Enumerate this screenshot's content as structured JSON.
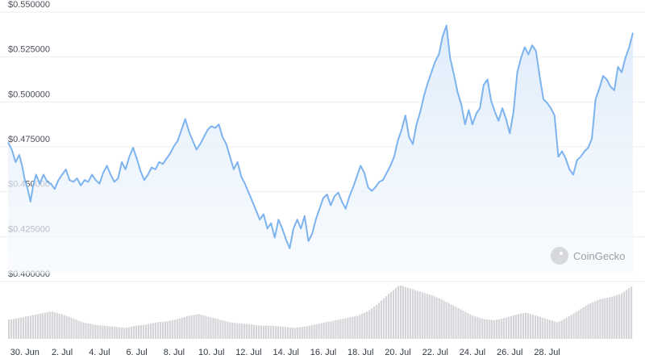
{
  "chart_data": {
    "type": "area",
    "title": "",
    "xlabel": "",
    "ylabel": "",
    "y_tick_labels": [
      "$0.550000",
      "$0.525000",
      "$0.500000",
      "$0.475000",
      "$0.450000",
      "$0.425000",
      "$0.400000"
    ],
    "y_ticks": [
      0.55,
      0.525,
      0.5,
      0.475,
      0.45,
      0.425,
      0.4
    ],
    "ylim": [
      0.4,
      0.55
    ],
    "x_tick_labels": [
      "30. Jun",
      "2. Jul",
      "4. Jul",
      "6. Jul",
      "8. Jul",
      "10. Jul",
      "12. Jul",
      "14. Jul",
      "16. Jul",
      "18. Jul",
      "20. Jul",
      "22. Jul",
      "24. Jul",
      "26. Jul",
      "28. Jul"
    ],
    "x_ticks_day": [
      0,
      2,
      4,
      6,
      8,
      10,
      12,
      14,
      16,
      18,
      20,
      22,
      24,
      26,
      28
    ],
    "xlim_day": [
      -0.9,
      29.2
    ],
    "grid": true,
    "colors": {
      "line": "#7db3ee",
      "area_top": "#dcebfa",
      "volume": "#d3d5d8"
    },
    "series": [
      {
        "values": [
          [
            -0.9,
            0.473
          ],
          [
            -0.7,
            0.469
          ],
          [
            -0.5,
            0.462
          ],
          [
            -0.3,
            0.466
          ],
          [
            -0.15,
            0.46
          ],
          [
            0.0,
            0.452
          ],
          [
            0.15,
            0.447
          ],
          [
            0.3,
            0.44
          ],
          [
            0.45,
            0.449
          ],
          [
            0.6,
            0.455
          ],
          [
            0.8,
            0.45
          ],
          [
            1.0,
            0.455
          ],
          [
            1.2,
            0.451
          ],
          [
            1.4,
            0.45
          ],
          [
            1.6,
            0.447
          ],
          [
            1.8,
            0.452
          ],
          [
            2.0,
            0.455
          ],
          [
            2.2,
            0.458
          ],
          [
            2.4,
            0.452
          ],
          [
            2.6,
            0.451
          ],
          [
            2.8,
            0.453
          ],
          [
            3.0,
            0.449
          ],
          [
            3.2,
            0.452
          ],
          [
            3.4,
            0.451
          ],
          [
            3.6,
            0.455
          ],
          [
            3.8,
            0.452
          ],
          [
            4.0,
            0.45
          ],
          [
            4.2,
            0.456
          ],
          [
            4.4,
            0.46
          ],
          [
            4.6,
            0.455
          ],
          [
            4.8,
            0.451
          ],
          [
            5.0,
            0.453
          ],
          [
            5.2,
            0.462
          ],
          [
            5.4,
            0.458
          ],
          [
            5.6,
            0.465
          ],
          [
            5.8,
            0.47
          ],
          [
            6.0,
            0.464
          ],
          [
            6.2,
            0.457
          ],
          [
            6.4,
            0.452
          ],
          [
            6.6,
            0.455
          ],
          [
            6.8,
            0.459
          ],
          [
            7.0,
            0.458
          ],
          [
            7.2,
            0.462
          ],
          [
            7.4,
            0.461
          ],
          [
            7.6,
            0.464
          ],
          [
            7.8,
            0.467
          ],
          [
            8.0,
            0.471
          ],
          [
            8.2,
            0.474
          ],
          [
            8.4,
            0.48
          ],
          [
            8.6,
            0.486
          ],
          [
            8.8,
            0.479
          ],
          [
            9.0,
            0.474
          ],
          [
            9.2,
            0.469
          ],
          [
            9.4,
            0.472
          ],
          [
            9.6,
            0.476
          ],
          [
            9.8,
            0.48
          ],
          [
            10.0,
            0.482
          ],
          [
            10.2,
            0.481
          ],
          [
            10.4,
            0.483
          ],
          [
            10.6,
            0.476
          ],
          [
            10.8,
            0.472
          ],
          [
            11.0,
            0.465
          ],
          [
            11.2,
            0.458
          ],
          [
            11.4,
            0.462
          ],
          [
            11.6,
            0.454
          ],
          [
            11.8,
            0.45
          ],
          [
            12.0,
            0.445
          ],
          [
            12.2,
            0.44
          ],
          [
            12.4,
            0.435
          ],
          [
            12.6,
            0.43
          ],
          [
            12.8,
            0.433
          ],
          [
            13.0,
            0.425
          ],
          [
            13.2,
            0.428
          ],
          [
            13.4,
            0.42
          ],
          [
            13.6,
            0.43
          ],
          [
            13.8,
            0.425
          ],
          [
            14.0,
            0.419
          ],
          [
            14.2,
            0.414
          ],
          [
            14.4,
            0.425
          ],
          [
            14.6,
            0.43
          ],
          [
            14.8,
            0.425
          ],
          [
            15.0,
            0.432
          ],
          [
            15.2,
            0.418
          ],
          [
            15.4,
            0.422
          ],
          [
            15.6,
            0.43
          ],
          [
            15.8,
            0.436
          ],
          [
            16.0,
            0.442
          ],
          [
            16.2,
            0.444
          ],
          [
            16.4,
            0.438
          ],
          [
            16.6,
            0.443
          ],
          [
            16.8,
            0.445
          ],
          [
            17.0,
            0.44
          ],
          [
            17.2,
            0.436
          ],
          [
            17.4,
            0.443
          ],
          [
            17.6,
            0.448
          ],
          [
            17.8,
            0.454
          ],
          [
            18.0,
            0.46
          ],
          [
            18.2,
            0.456
          ],
          [
            18.4,
            0.448
          ],
          [
            18.6,
            0.446
          ],
          [
            18.8,
            0.448
          ],
          [
            19.0,
            0.451
          ],
          [
            19.2,
            0.452
          ],
          [
            19.4,
            0.456
          ],
          [
            19.6,
            0.46
          ],
          [
            19.8,
            0.465
          ],
          [
            20.0,
            0.474
          ],
          [
            20.2,
            0.48
          ],
          [
            20.4,
            0.488
          ],
          [
            20.6,
            0.476
          ],
          [
            20.8,
            0.472
          ],
          [
            21.0,
            0.483
          ],
          [
            21.2,
            0.49
          ],
          [
            21.4,
            0.499
          ],
          [
            21.6,
            0.506
          ],
          [
            21.8,
            0.512
          ],
          [
            22.0,
            0.518
          ],
          [
            22.2,
            0.522
          ],
          [
            22.4,
            0.532
          ],
          [
            22.6,
            0.538
          ],
          [
            22.8,
            0.52
          ],
          [
            23.0,
            0.511
          ],
          [
            23.2,
            0.501
          ],
          [
            23.4,
            0.494
          ],
          [
            23.6,
            0.483
          ],
          [
            23.8,
            0.491
          ],
          [
            24.0,
            0.483
          ],
          [
            24.2,
            0.489
          ],
          [
            24.4,
            0.492
          ],
          [
            24.6,
            0.505
          ],
          [
            24.8,
            0.508
          ],
          [
            25.0,
            0.496
          ],
          [
            25.2,
            0.49
          ],
          [
            25.4,
            0.485
          ],
          [
            25.6,
            0.492
          ],
          [
            25.8,
            0.486
          ],
          [
            26.0,
            0.478
          ],
          [
            26.2,
            0.49
          ],
          [
            26.4,
            0.512
          ],
          [
            26.6,
            0.52
          ],
          [
            26.8,
            0.526
          ],
          [
            27.0,
            0.522
          ],
          [
            27.2,
            0.527
          ],
          [
            27.4,
            0.524
          ],
          [
            27.6,
            0.51
          ],
          [
            27.8,
            0.497
          ],
          [
            28.0,
            0.495
          ],
          [
            28.2,
            0.492
          ],
          [
            28.4,
            0.488
          ],
          [
            28.6,
            0.465
          ],
          [
            28.8,
            0.468
          ],
          [
            29.0,
            0.464
          ],
          [
            29.2,
            0.458
          ],
          [
            29.4,
            0.455
          ],
          [
            29.6,
            0.463
          ],
          [
            29.8,
            0.465
          ],
          [
            30.0,
            0.468
          ],
          [
            30.2,
            0.47
          ],
          [
            30.4,
            0.475
          ],
          [
            30.6,
            0.497
          ],
          [
            30.8,
            0.503
          ],
          [
            31.0,
            0.51
          ],
          [
            31.2,
            0.508
          ],
          [
            31.4,
            0.504
          ],
          [
            31.6,
            0.502
          ],
          [
            31.8,
            0.515
          ],
          [
            32.0,
            0.512
          ],
          [
            32.2,
            0.52
          ],
          [
            32.4,
            0.526
          ],
          [
            32.6,
            0.534
          ]
        ]
      }
    ],
    "volume_relative": [
      0.35,
      0.38,
      0.42,
      0.46,
      0.5,
      0.45,
      0.38,
      0.3,
      0.26,
      0.24,
      0.22,
      0.2,
      0.24,
      0.26,
      0.3,
      0.32,
      0.36,
      0.42,
      0.45,
      0.4,
      0.35,
      0.3,
      0.28,
      0.26,
      0.24,
      0.24,
      0.22,
      0.2,
      0.22,
      0.26,
      0.3,
      0.34,
      0.38,
      0.42,
      0.5,
      0.64,
      0.82,
      0.98,
      0.92,
      0.86,
      0.8,
      0.72,
      0.62,
      0.52,
      0.42,
      0.36,
      0.34,
      0.38,
      0.44,
      0.48,
      0.42,
      0.36,
      0.3,
      0.4,
      0.52,
      0.64,
      0.72,
      0.76,
      0.82,
      0.95
    ]
  },
  "watermark": {
    "text": "CoinGecko",
    "icon": "gecko-logo-icon"
  }
}
